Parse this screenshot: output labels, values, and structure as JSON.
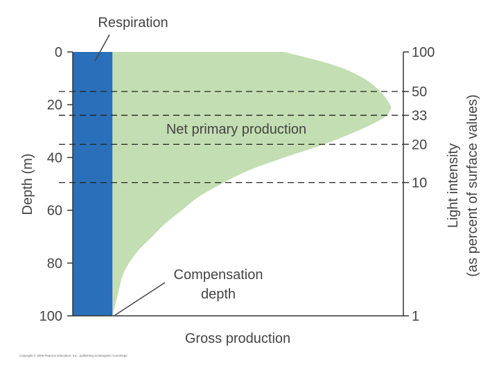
{
  "chart_data": {
    "type": "area",
    "ylabel": "Depth (m)",
    "xlabel": "Gross production",
    "y2label_line1": "Light intensity",
    "y2label_line2": "(as percent of surface values)",
    "ylim": [
      0,
      100
    ],
    "y_ticks": [
      "0",
      "20",
      "40",
      "60",
      "80",
      "100"
    ],
    "y_tick_values": [
      0,
      20,
      40,
      60,
      80,
      100
    ],
    "y2_ticks": [
      {
        "label": "100",
        "depth": 0
      },
      {
        "label": "50",
        "depth": 15
      },
      {
        "label": "33",
        "depth": 24
      },
      {
        "label": "20",
        "depth": 35
      },
      {
        "label": "10",
        "depth": 49.5
      },
      {
        "label": "1",
        "depth": 100
      }
    ],
    "dashed_depths": [
      15,
      24,
      35,
      49.5
    ],
    "xlim": [
      0,
      100
    ],
    "respiration_value": 12,
    "gross_production_profile": {
      "depth": [
        0,
        5,
        10,
        15,
        20,
        22,
        25,
        30,
        35,
        40,
        45,
        50,
        55,
        60,
        65,
        70,
        75,
        80,
        85,
        90,
        95,
        100
      ],
      "value": [
        64,
        79,
        88,
        93,
        96,
        96,
        94,
        86,
        76,
        64,
        53,
        45,
        38,
        33,
        28,
        24,
        20,
        17,
        15,
        14,
        13,
        12
      ]
    },
    "annotations": {
      "respiration": "Respiration",
      "net_primary": "Net primary production",
      "compensation_line1": "Compensation",
      "compensation_line2": "depth"
    },
    "colors": {
      "respiration": "#2a6fb9",
      "net_primary": "#c3deb2",
      "axis": "#333333"
    }
  },
  "footer": {
    "copyright": "Copyright © 2006 Pearson Education, Inc., publishing as Benjamin Cummings"
  }
}
